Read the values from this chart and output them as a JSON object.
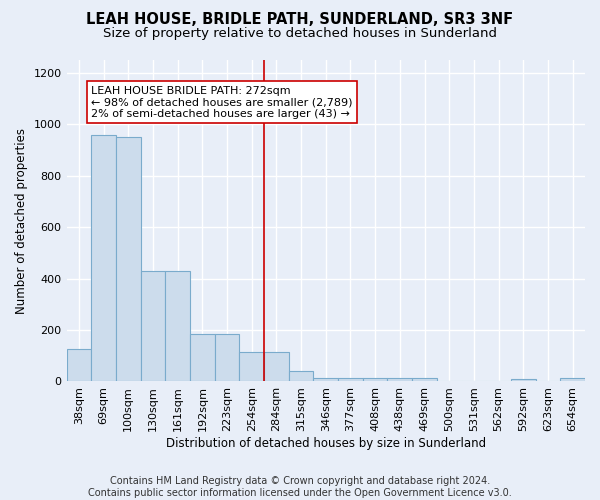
{
  "title": "LEAH HOUSE, BRIDLE PATH, SUNDERLAND, SR3 3NF",
  "subtitle": "Size of property relative to detached houses in Sunderland",
  "xlabel": "Distribution of detached houses by size in Sunderland",
  "ylabel": "Number of detached properties",
  "categories": [
    "38sqm",
    "69sqm",
    "100sqm",
    "130sqm",
    "161sqm",
    "192sqm",
    "223sqm",
    "254sqm",
    "284sqm",
    "315sqm",
    "346sqm",
    "377sqm",
    "408sqm",
    "438sqm",
    "469sqm",
    "500sqm",
    "531sqm",
    "562sqm",
    "592sqm",
    "623sqm",
    "654sqm"
  ],
  "values": [
    125,
    960,
    950,
    430,
    430,
    185,
    185,
    115,
    115,
    40,
    14,
    14,
    14,
    14,
    14,
    0,
    0,
    0,
    10,
    0,
    12
  ],
  "bar_color": "#ccdcec",
  "bar_edge_color": "#7aabcc",
  "vline_x_index": 8,
  "vline_color": "#cc0000",
  "annotation_text": "LEAH HOUSE BRIDLE PATH: 272sqm\n← 98% of detached houses are smaller (2,789)\n2% of semi-detached houses are larger (43) →",
  "annotation_box_color": "#ffffff",
  "annotation_box_edge_color": "#cc0000",
  "ylim": [
    0,
    1250
  ],
  "yticks": [
    0,
    200,
    400,
    600,
    800,
    1000,
    1200
  ],
  "footer": "Contains HM Land Registry data © Crown copyright and database right 2024.\nContains public sector information licensed under the Open Government Licence v3.0.",
  "background_color": "#e8eef8",
  "plot_background_color": "#e8eef8",
  "grid_color": "#ffffff",
  "title_fontsize": 10.5,
  "subtitle_fontsize": 9.5,
  "axis_label_fontsize": 8.5,
  "tick_fontsize": 8,
  "footer_fontsize": 7
}
